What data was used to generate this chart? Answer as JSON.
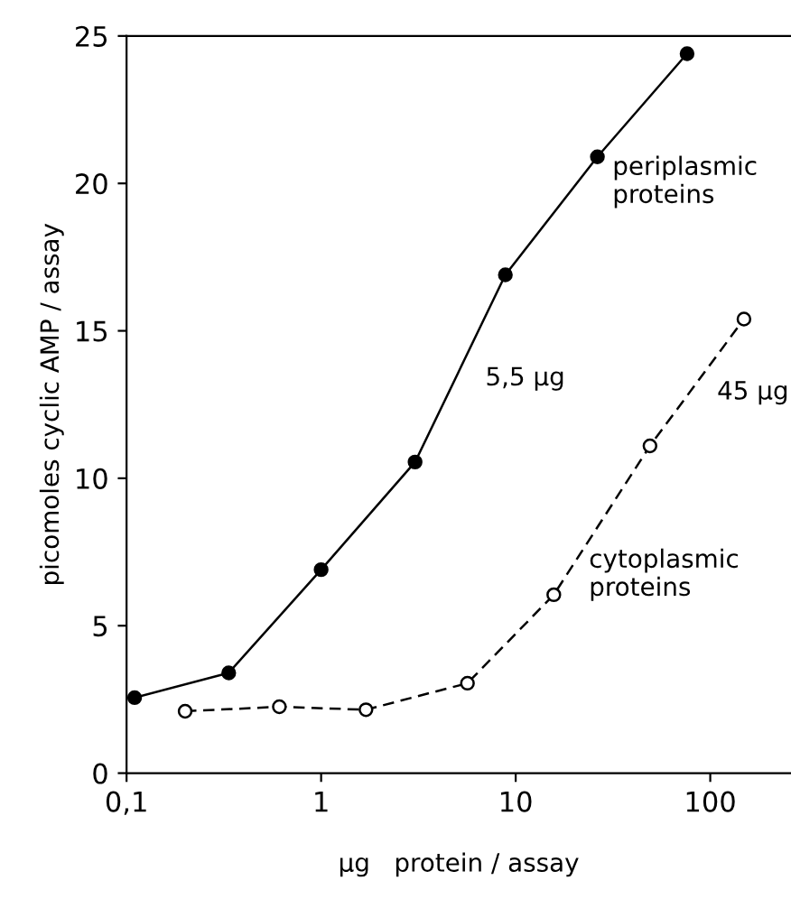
{
  "chart_data": {
    "type": "line",
    "xlabel": "µg   protein / assay",
    "ylabel": "picomoles cyclic AMP / assay",
    "log": "x",
    "xlim": [
      0.1,
      260
    ],
    "xticks": [
      {
        "value": 0.1,
        "label": "0,1"
      },
      1,
      10,
      100
    ],
    "ylim": [
      0,
      25
    ],
    "yticks": [
      0,
      5,
      10,
      15,
      20,
      25
    ],
    "grid": false,
    "legend": false,
    "marker": "circle",
    "series": [
      {
        "name": "periplasmic proteins",
        "color": "#000000",
        "line_style": "solid",
        "x": [
          0.11,
          0.335,
          1.0,
          3.04,
          8.85,
          26.3,
          76
        ],
        "values": [
          2.56,
          3.4,
          6.9,
          10.55,
          16.9,
          20.9,
          24.4
        ]
      },
      {
        "name": "cytoplasmic proteins",
        "color": "#000000",
        "line_style": "dashed",
        "x": [
          0.2,
          0.61,
          1.7,
          5.65,
          15.7,
          49,
          149
        ],
        "values": [
          2.1,
          2.25,
          2.15,
          3.05,
          6.05,
          11.1,
          15.4
        ]
      }
    ],
    "annotations": [
      "5,5 µg",
      "45 µg"
    ]
  }
}
